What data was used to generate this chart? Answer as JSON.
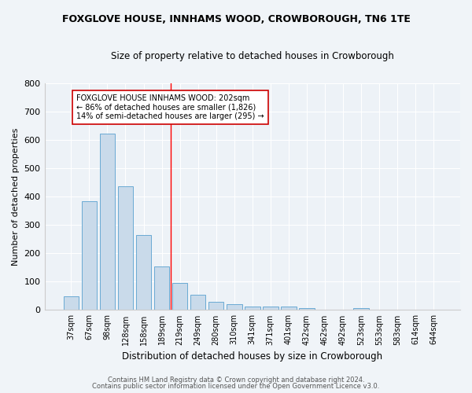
{
  "title": "FOXGLOVE HOUSE, INNHAMS WOOD, CROWBOROUGH, TN6 1TE",
  "subtitle": "Size of property relative to detached houses in Crowborough",
  "xlabel": "Distribution of detached houses by size in Crowborough",
  "ylabel": "Number of detached properties",
  "categories": [
    "37sqm",
    "67sqm",
    "98sqm",
    "128sqm",
    "158sqm",
    "189sqm",
    "219sqm",
    "249sqm",
    "280sqm",
    "310sqm",
    "341sqm",
    "371sqm",
    "401sqm",
    "432sqm",
    "462sqm",
    "492sqm",
    "523sqm",
    "553sqm",
    "583sqm",
    "614sqm",
    "644sqm"
  ],
  "values": [
    47,
    383,
    621,
    437,
    265,
    153,
    95,
    54,
    30,
    20,
    11,
    12,
    12,
    7,
    0,
    0,
    8,
    0,
    0,
    0,
    0
  ],
  "bar_color": "#c9daea",
  "bar_edge_color": "#6aaad4",
  "red_line_x": 5.5,
  "annotation_title": "FOXGLOVE HOUSE INNHAMS WOOD: 202sqm",
  "annotation_line2": "← 86% of detached houses are smaller (1,826)",
  "annotation_line3": "14% of semi-detached houses are larger (295) →",
  "footer_line1": "Contains HM Land Registry data © Crown copyright and database right 2024.",
  "footer_line2": "Contains public sector information licensed under the Open Government Licence v3.0.",
  "background_color": "#f0f4f8",
  "plot_bg_color": "#edf2f7",
  "ylim": [
    0,
    800
  ],
  "yticks": [
    0,
    100,
    200,
    300,
    400,
    500,
    600,
    700,
    800
  ]
}
